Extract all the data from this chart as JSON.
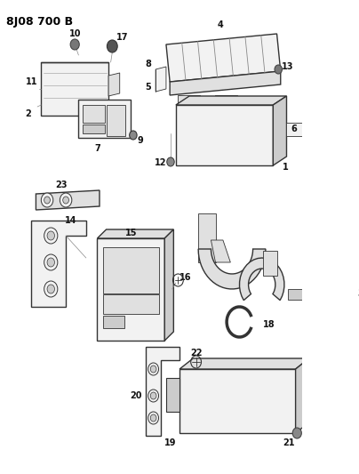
{
  "title": "8J08 700 B",
  "bg": "#ffffff",
  "lc": "#111111",
  "ec": "#333333",
  "fc_light": "#f2f2f2",
  "fc_mid": "#e0e0e0",
  "fc_dark": "#cccccc",
  "lw_main": 1.0,
  "lw_thin": 0.6,
  "fs_label": 7,
  "fs_title": 9
}
